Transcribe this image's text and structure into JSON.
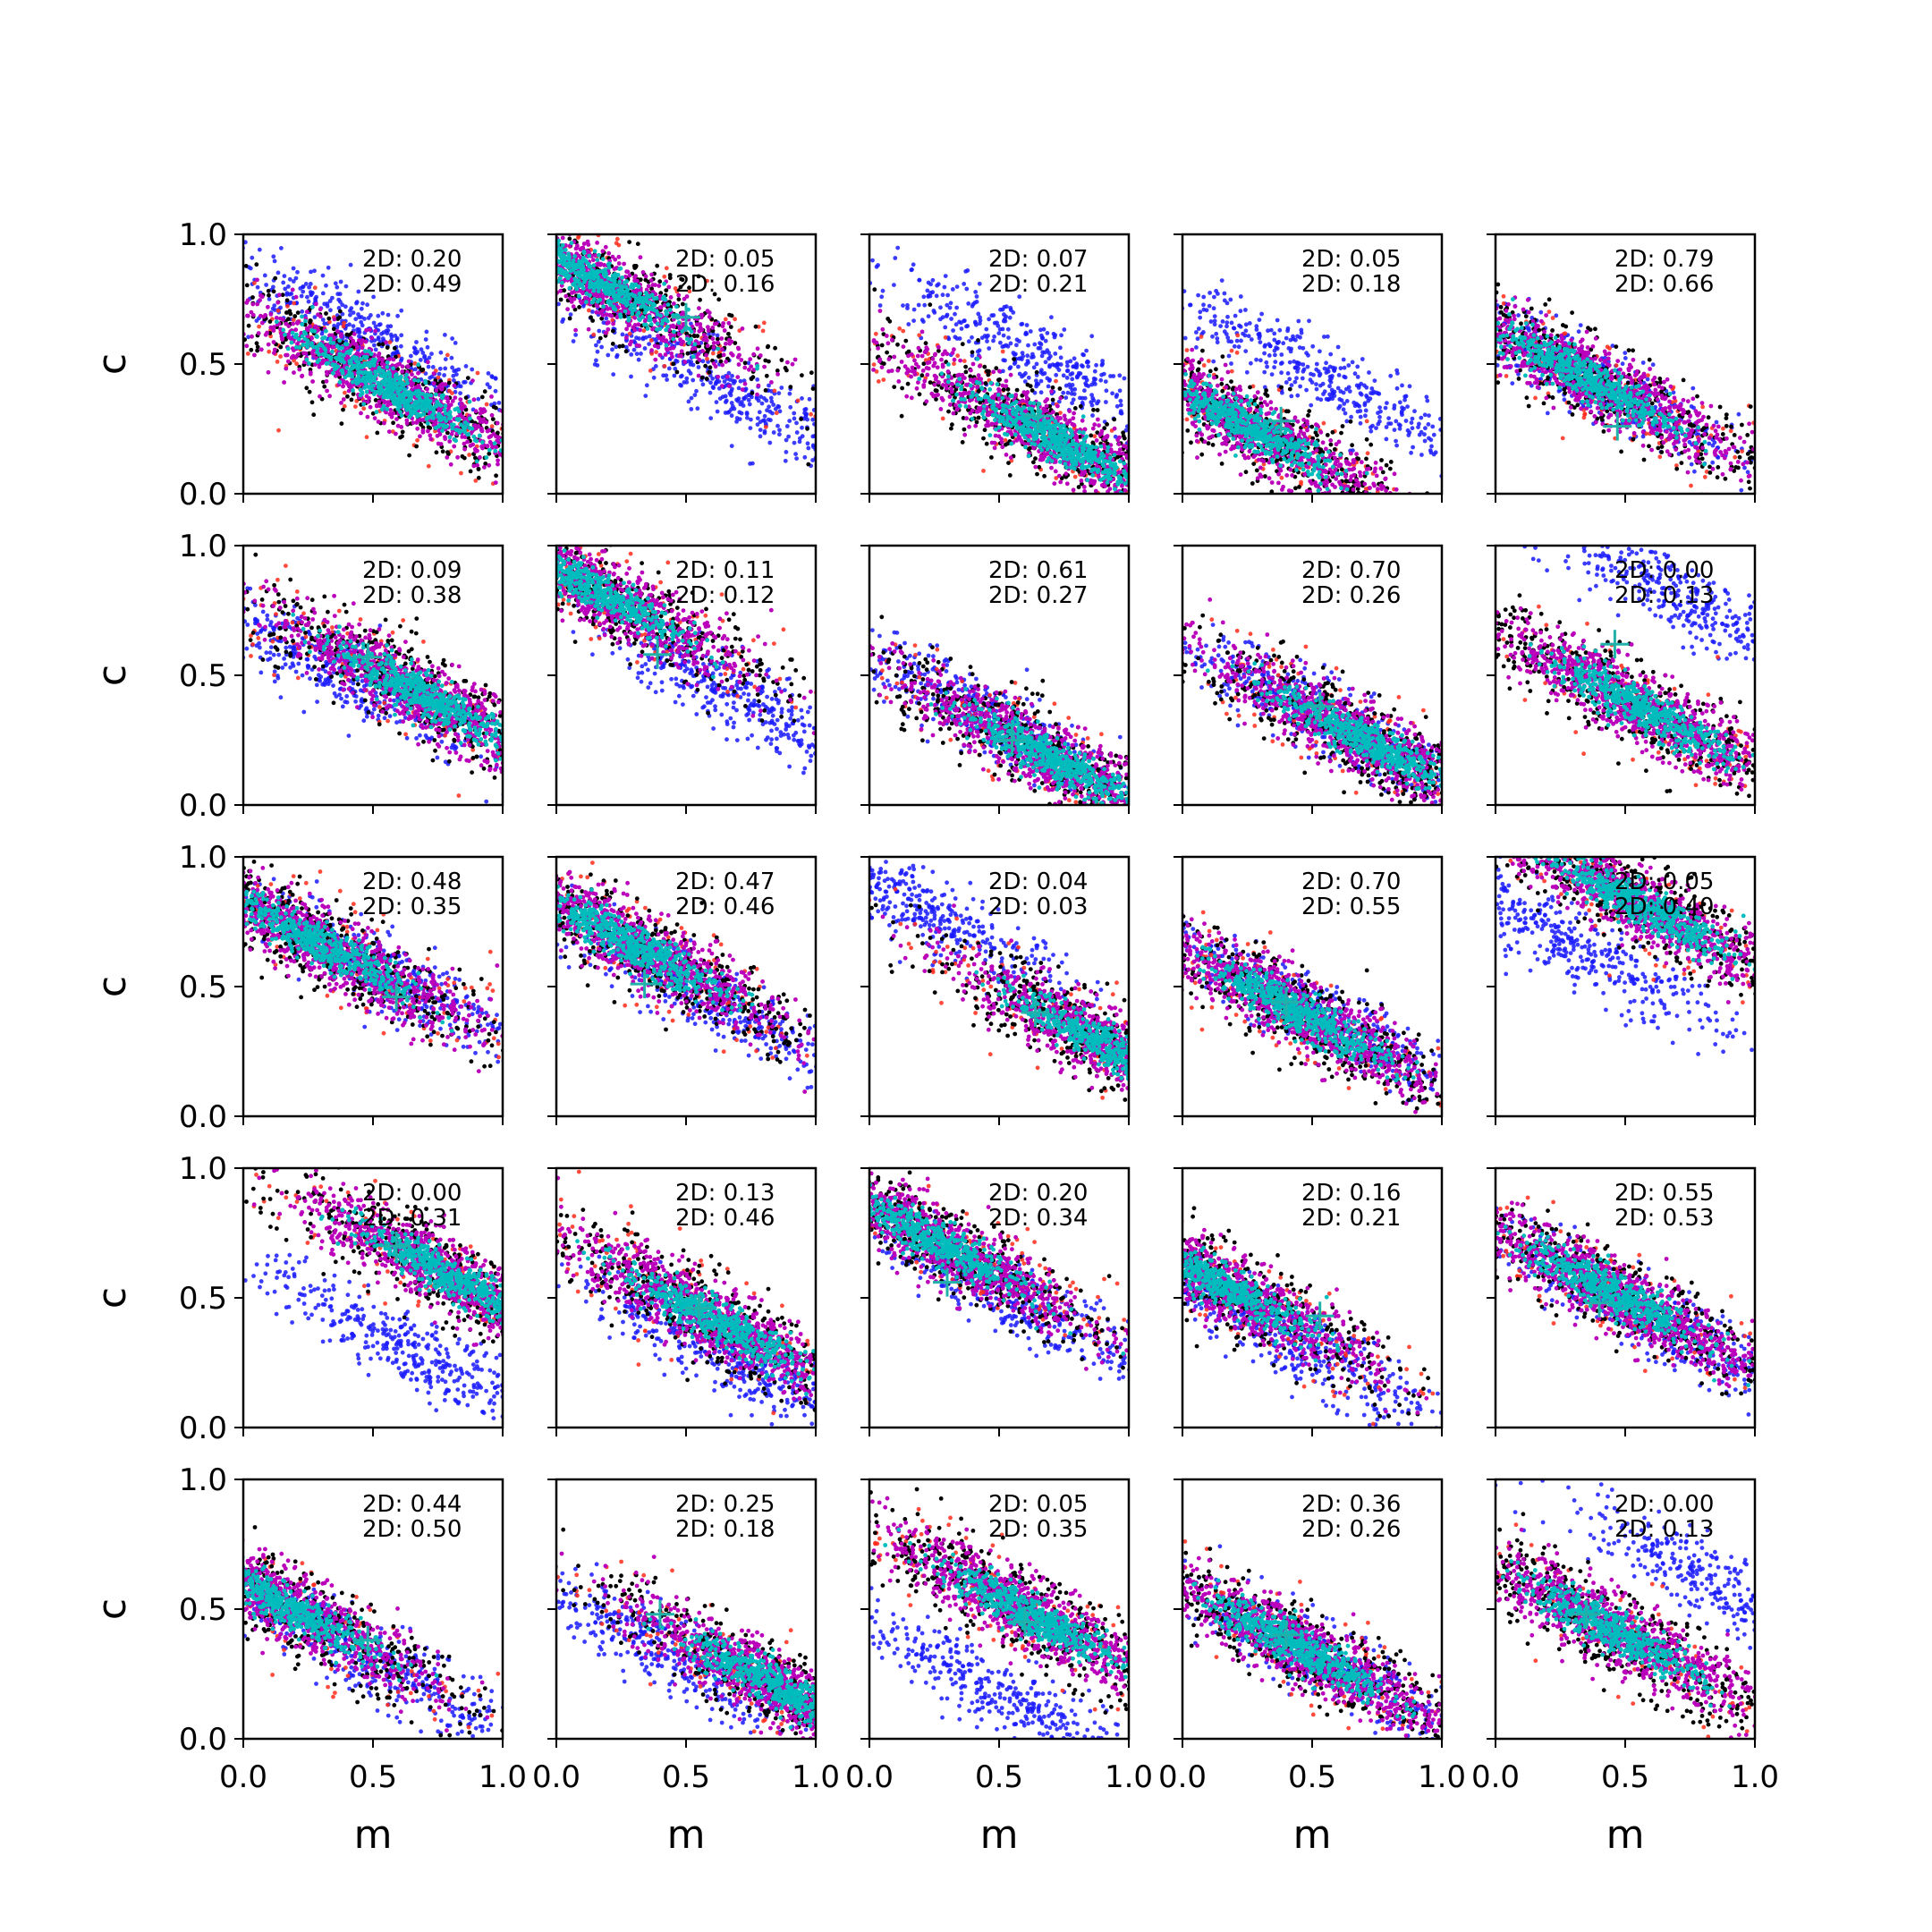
{
  "colors": {
    "outer": "#ff2a1a",
    "ring": "#000000",
    "core": "#bb00bb",
    "center": "#00bcbc",
    "alt": "#1a1aff",
    "marker": "#20b2aa"
  },
  "axes": {
    "xlabel": "m",
    "ylabel": "c",
    "xlim": [
      0,
      1
    ],
    "ylim": [
      0,
      1
    ],
    "x_ticks": [
      "0.0",
      "0.5",
      "1.0"
    ],
    "y_ticks": [
      "0.0",
      "0.5",
      "1.0"
    ]
  },
  "chart_data": {
    "type": "scatter",
    "rows": 5,
    "cols": 5,
    "panels": [
      {
        "ann": [
          "2D: 0.20",
          "2D: 0.49"
        ],
        "main": {
          "m": 0.55,
          "c": 0.42
        },
        "alt": {
          "m": 0.45,
          "c": 0.62
        },
        "marker": null
      },
      {
        "ann": [
          "2D: 0.05",
          "2D: 0.16"
        ],
        "main": {
          "m": 0.15,
          "c": 0.82
        },
        "alt": {
          "m": 0.65,
          "c": 0.4
        },
        "marker": {
          "m": 0.5,
          "c": 0.68
        }
      },
      {
        "ann": [
          "2D: 0.07",
          "2D: 0.21"
        ],
        "main": {
          "m": 0.7,
          "c": 0.22
        },
        "alt": {
          "m": 0.65,
          "c": 0.53
        },
        "marker": {
          "m": 0.65,
          "c": 0.3
        }
      },
      {
        "ann": [
          "2D: 0.05",
          "2D: 0.18"
        ],
        "main": {
          "m": 0.25,
          "c": 0.26
        },
        "alt": {
          "m": 0.55,
          "c": 0.45
        },
        "marker": {
          "m": 0.38,
          "c": 0.28
        }
      },
      {
        "ann": [
          "2D: 0.79",
          "2D: 0.66"
        ],
        "main": {
          "m": 0.35,
          "c": 0.45
        },
        "alt": {
          "m": 0.4,
          "c": 0.42
        },
        "marker": {
          "m": 0.47,
          "c": 0.26
        }
      },
      {
        "ann": [
          "2D: 0.09",
          "2D: 0.38"
        ],
        "main": {
          "m": 0.7,
          "c": 0.42
        },
        "alt": {
          "m": 0.3,
          "c": 0.55
        },
        "marker": {
          "m": 0.48,
          "c": 0.57
        }
      },
      {
        "ann": [
          "2D: 0.11",
          "2D: 0.12"
        ],
        "main": {
          "m": 0.15,
          "c": 0.83
        },
        "alt": {
          "m": 0.72,
          "c": 0.4
        },
        "marker": {
          "m": 0.39,
          "c": 0.58
        }
      },
      {
        "ann": [
          "2D: 0.61",
          "2D: 0.27"
        ],
        "main": {
          "m": 0.7,
          "c": 0.18
        },
        "alt": {
          "m": 0.38,
          "c": 0.38
        },
        "marker": {
          "m": 0.55,
          "c": 0.25
        }
      },
      {
        "ann": [
          "2D: 0.70",
          "2D: 0.26"
        ],
        "main": {
          "m": 0.7,
          "c": 0.25
        },
        "alt": {
          "m": 0.55,
          "c": 0.33
        },
        "marker": {
          "m": 0.53,
          "c": 0.38
        }
      },
      {
        "ann": [
          "2D: 0.00",
          "2D: 0.13"
        ],
        "main": {
          "m": 0.55,
          "c": 0.38
        },
        "alt": {
          "m": 0.75,
          "c": 0.78
        },
        "marker": {
          "m": 0.46,
          "c": 0.62
        }
      },
      {
        "ann": [
          "2D: 0.48",
          "2D: 0.35"
        ],
        "main": {
          "m": 0.3,
          "c": 0.66
        },
        "alt": {
          "m": 0.55,
          "c": 0.55
        },
        "marker": {
          "m": 0.59,
          "c": 0.46
        }
      },
      {
        "ann": [
          "2D: 0.47",
          "2D: 0.46"
        ],
        "main": {
          "m": 0.3,
          "c": 0.66
        },
        "alt": {
          "m": 0.6,
          "c": 0.45
        },
        "marker": {
          "m": 0.34,
          "c": 0.51
        }
      },
      {
        "ann": [
          "2D: 0.04",
          "2D: 0.03"
        ],
        "main": {
          "m": 0.92,
          "c": 0.27
        },
        "alt": {
          "m": 0.2,
          "c": 0.8
        },
        "marker": {
          "m": 0.64,
          "c": 0.4
        }
      },
      {
        "ann": [
          "2D: 0.70",
          "2D: 0.55"
        ],
        "main": {
          "m": 0.45,
          "c": 0.4
        },
        "alt": {
          "m": 0.5,
          "c": 0.4
        },
        "marker": {
          "m": 0.4,
          "c": 0.44
        }
      },
      {
        "ann": [
          "2D: 0.05",
          "2D: 0.40"
        ],
        "main": {
          "m": 0.55,
          "c": 0.82
        },
        "alt": {
          "m": 0.25,
          "c": 0.68
        },
        "marker": null
      },
      {
        "ann": [
          "2D: 0.00",
          "2D: 0.31"
        ],
        "main": {
          "m": 0.8,
          "c": 0.58
        },
        "alt": {
          "m": 0.65,
          "c": 0.29
        },
        "marker": {
          "m": 0.59,
          "c": 0.7
        }
      },
      {
        "ann": [
          "2D: 0.13",
          "2D: 0.46"
        ],
        "main": {
          "m": 0.6,
          "c": 0.42
        },
        "alt": {
          "m": 0.7,
          "c": 0.25
        },
        "marker": {
          "m": 0.55,
          "c": 0.46
        }
      },
      {
        "ann": [
          "2D: 0.20",
          "2D: 0.34"
        ],
        "main": {
          "m": 0.25,
          "c": 0.72
        },
        "alt": {
          "m": 0.55,
          "c": 0.5
        },
        "marker": {
          "m": 0.3,
          "c": 0.56
        }
      },
      {
        "ann": [
          "2D: 0.16",
          "2D: 0.21"
        ],
        "main": {
          "m": 0.15,
          "c": 0.55
        },
        "alt": {
          "m": 0.45,
          "c": 0.32
        },
        "marker": {
          "m": 0.53,
          "c": 0.43
        }
      },
      {
        "ann": [
          "2D: 0.55",
          "2D: 0.53"
        ],
        "main": {
          "m": 0.45,
          "c": 0.52
        },
        "alt": {
          "m": 0.55,
          "c": 0.45
        },
        "marker": {
          "m": 0.4,
          "c": 0.48
        }
      },
      {
        "ann": [
          "2D: 0.44",
          "2D: 0.50"
        ],
        "main": {
          "m": 0.15,
          "c": 0.52
        },
        "alt": {
          "m": 0.5,
          "c": 0.3
        },
        "marker": {
          "m": 0.48,
          "c": 0.38
        }
      },
      {
        "ann": [
          "2D: 0.25",
          "2D: 0.18"
        ],
        "main": {
          "m": 0.85,
          "c": 0.2
        },
        "alt": {
          "m": 0.4,
          "c": 0.35
        },
        "marker": {
          "m": 0.4,
          "c": 0.48
        }
      },
      {
        "ann": [
          "2D: 0.05",
          "2D: 0.35"
        ],
        "main": {
          "m": 0.62,
          "c": 0.48
        },
        "alt": {
          "m": 0.5,
          "c": 0.17
        },
        "marker": {
          "m": 0.6,
          "c": 0.45
        }
      },
      {
        "ann": [
          "2D: 0.36",
          "2D: 0.26"
        ],
        "main": {
          "m": 0.45,
          "c": 0.35
        },
        "alt": {
          "m": 0.55,
          "c": 0.3
        },
        "marker": {
          "m": 0.4,
          "c": 0.4
        }
      },
      {
        "ann": [
          "2D: 0.00",
          "2D: 0.13"
        ],
        "main": {
          "m": 0.45,
          "c": 0.42
        },
        "alt": {
          "m": 0.9,
          "c": 0.57
        },
        "marker": {
          "m": 0.35,
          "c": 0.48
        }
      }
    ]
  }
}
